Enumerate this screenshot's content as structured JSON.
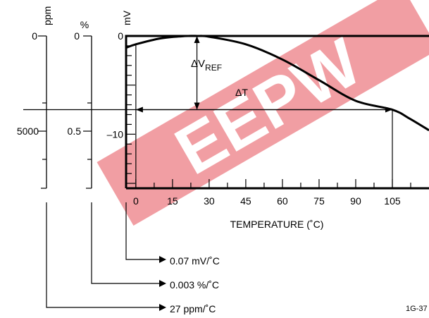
{
  "chart_data": {
    "type": "line",
    "title": "",
    "xlabel": "TEMPERATURE (˚C)",
    "x_ticks": [
      0,
      15,
      30,
      45,
      60,
      75,
      90,
      105
    ],
    "xlim": [
      -4,
      120
    ],
    "ylim_mV": [
      -15.5,
      0
    ],
    "y_axes": [
      {
        "unit": "ppm",
        "ticks": [
          {
            "label": "0",
            "value": 0
          },
          {
            "label": "5000",
            "value": 5000
          }
        ]
      },
      {
        "unit": "%",
        "ticks": [
          {
            "label": "0",
            "value": 0
          },
          {
            "label": "0.5",
            "value": 0.5
          }
        ]
      },
      {
        "unit": "mV",
        "ticks": [
          {
            "label": "0",
            "value": 0
          },
          {
            "label": "–10",
            "value": -10
          }
        ]
      }
    ],
    "series": [
      {
        "points": [
          {
            "x": -4,
            "y": -1.2
          },
          {
            "x": 0,
            "y": -0.85
          },
          {
            "x": 10,
            "y": -0.25
          },
          {
            "x": 20,
            "y": -0.01
          },
          {
            "x": 25,
            "y": 0
          },
          {
            "x": 30,
            "y": -0.08
          },
          {
            "x": 45,
            "y": -0.85
          },
          {
            "x": 60,
            "y": -2.4
          },
          {
            "x": 75,
            "y": -4.5
          },
          {
            "x": 90,
            "y": -6.6
          },
          {
            "x": 105,
            "y": -7.5
          },
          {
            "x": 112,
            "y": -8.4
          },
          {
            "x": 120,
            "y": -9.6
          }
        ]
      }
    ],
    "annotations": {
      "delta_vref": "ΔV",
      "delta_vref_sub": "REF",
      "delta_t": "ΔT",
      "delta_t_range": [
        0,
        105
      ],
      "vref_at_x": 25
    },
    "coefficients": [
      "0.07 mV/˚C",
      "0.003 %/˚C",
      "27 ppm/˚C"
    ],
    "figure_id": "1G-37"
  },
  "watermark": {
    "text": "EEPW",
    "color": "#e4404a"
  }
}
